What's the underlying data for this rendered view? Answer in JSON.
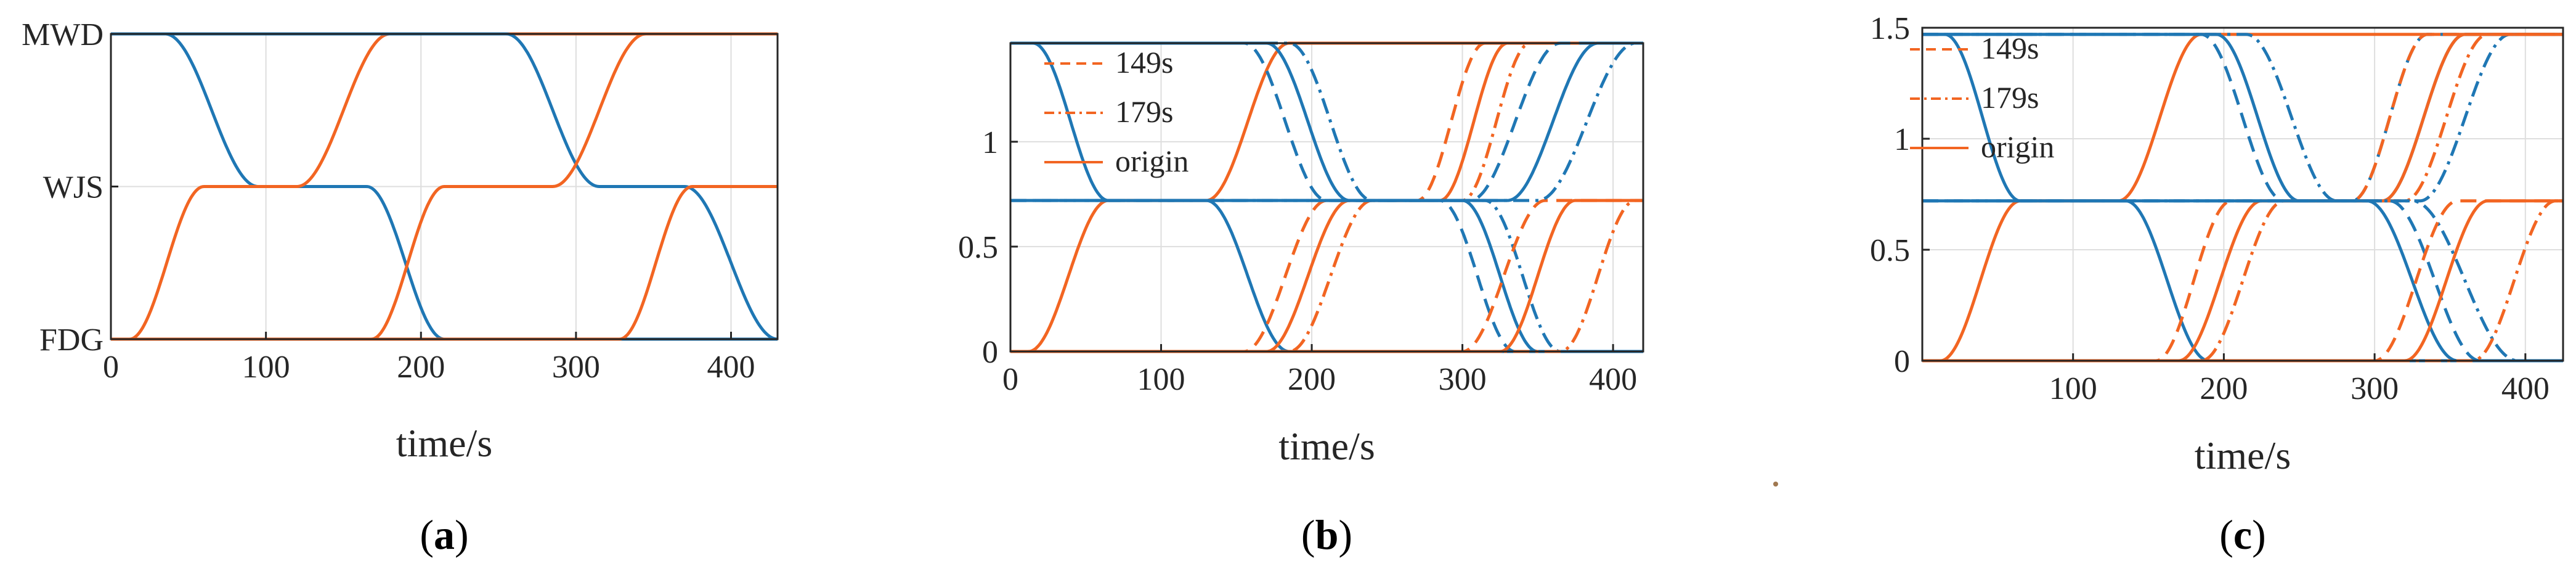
{
  "colors": {
    "blue": "#1f77b4",
    "orange": "#f26522",
    "axis": "#262626",
    "grid": "#dedede"
  },
  "chart_data": [
    {
      "panel": "a",
      "panel_label_prefix": "(",
      "panel_label_letter": "a",
      "panel_label_suffix": ")",
      "type": "line",
      "xlabel": "time/s",
      "xlim": [
        0,
        430
      ],
      "ylim": [
        0,
        2
      ],
      "xticks": [
        0,
        100,
        200,
        300,
        400
      ],
      "yticks": [
        0,
        1,
        2
      ],
      "ytick_labels": [
        "FDG",
        "WJS",
        "MWD"
      ],
      "legend": [],
      "series": [
        {
          "name": "blue",
          "color": "blue",
          "dash": "solid",
          "ramps": [
            [
              0,
              33,
              2
            ],
            [
              35,
              95,
              1
            ],
            [
              165,
              215,
              0
            ]
          ]
        },
        {
          "name": "orange",
          "color": "orange",
          "dash": "solid",
          "ramps": [
            [
              0,
              10,
              0
            ],
            [
              12,
              60,
              1
            ],
            [
              120,
              180,
              2
            ]
          ]
        },
        {
          "name": "blue-2",
          "color": "blue",
          "dash": "solid",
          "ramps": [
            [
              0,
              250,
              2
            ],
            [
              255,
              315,
              1
            ],
            [
              370,
              430,
              0
            ]
          ]
        },
        {
          "name": "orange-2",
          "color": "orange",
          "dash": "solid",
          "ramps": [
            [
              0,
              165,
              0
            ],
            [
              168,
              215,
              1
            ],
            [
              285,
              345,
              2
            ]
          ]
        },
        {
          "name": "orange-3",
          "color": "orange",
          "dash": "solid",
          "ramps": [
            [
              0,
              325,
              0
            ],
            [
              328,
              375,
              1
            ]
          ]
        }
      ]
    },
    {
      "panel": "b",
      "panel_label_prefix": "(",
      "panel_label_letter": "b",
      "panel_label_suffix": ")",
      "type": "line",
      "xlabel": "time/s",
      "xlim": [
        0,
        420
      ],
      "ylim": [
        0,
        1.47
      ],
      "xticks": [
        0,
        100,
        200,
        300,
        400
      ],
      "yticks": [
        0,
        0.5,
        1
      ],
      "ytick_labels": [
        "0",
        "0.5",
        "1"
      ],
      "legend": [
        {
          "label": "149s",
          "color": "orange",
          "dash": "dash"
        },
        {
          "label": "179s",
          "color": "orange",
          "dash": "dashdot"
        },
        {
          "label": "origin",
          "color": "orange",
          "dash": "solid"
        }
      ],
      "series": [
        {
          "name": "blue-1",
          "color": "blue",
          "dash": "solid",
          "ramps": [
            [
              0,
              15,
              1.47
            ],
            [
              15,
              65,
              0.72
            ],
            [
              130,
              185,
              0
            ]
          ]
        },
        {
          "name": "orange-1",
          "color": "orange",
          "dash": "solid",
          "ramps": [
            [
              0,
              10,
              0
            ],
            [
              12,
              65,
              0.72
            ],
            [
              130,
              185,
              1.47
            ]
          ]
        },
        {
          "name": "orange-2",
          "color": "orange",
          "dash": "solid",
          "ramps": [
            [
              0,
              170,
              0
            ],
            [
              170,
              225,
              0.72
            ],
            [
              285,
              330,
              1.47
            ]
          ]
        },
        {
          "name": "orange-2d",
          "color": "orange",
          "dash": "dash",
          "ramps": [
            [
              0,
              155,
              0
            ],
            [
              155,
              210,
              0.72
            ],
            [
              270,
              315,
              1.47
            ]
          ]
        },
        {
          "name": "orange-2dd",
          "color": "orange",
          "dash": "dashdot",
          "ramps": [
            [
              0,
              185,
              0
            ],
            [
              185,
              240,
              0.72
            ],
            [
              300,
              345,
              1.47
            ]
          ]
        },
        {
          "name": "blue-2",
          "color": "blue",
          "dash": "solid",
          "ramps": [
            [
              0,
              170,
              1.47
            ],
            [
              170,
              225,
              0.72
            ],
            [
              300,
              350,
              0
            ]
          ]
        },
        {
          "name": "blue-2d",
          "color": "blue",
          "dash": "dash",
          "ramps": [
            [
              0,
              155,
              1.47
            ],
            [
              155,
              210,
              0.72
            ],
            [
              285,
              335,
              0
            ]
          ]
        },
        {
          "name": "blue-2dd",
          "color": "blue",
          "dash": "dashdot",
          "ramps": [
            [
              0,
              185,
              1.47
            ],
            [
              185,
              240,
              0.72
            ],
            [
              315,
              365,
              0
            ]
          ]
        },
        {
          "name": "orange-3",
          "color": "orange",
          "dash": "solid",
          "ramps": [
            [
              0,
              325,
              0
            ],
            [
              325,
              375,
              0.72
            ]
          ]
        },
        {
          "name": "orange-3d",
          "color": "orange",
          "dash": "dash",
          "ramps": [
            [
              0,
              300,
              0
            ],
            [
              300,
              355,
              0.72
            ]
          ]
        },
        {
          "name": "orange-3dd",
          "color": "orange",
          "dash": "dashdot",
          "ramps": [
            [
              0,
              365,
              0
            ],
            [
              365,
              415,
              0.72
            ]
          ]
        },
        {
          "name": "blue-3",
          "color": "blue",
          "dash": "solid",
          "ramps": [
            [
              0,
              330,
              0.72
            ],
            [
              330,
              390,
              1.47
            ]
          ]
        },
        {
          "name": "blue-3d",
          "color": "blue",
          "dash": "dash",
          "ramps": [
            [
              0,
              305,
              0.72
            ],
            [
              305,
              365,
              1.47
            ]
          ]
        },
        {
          "name": "blue-3dd",
          "color": "blue",
          "dash": "dashdot",
          "ramps": [
            [
              0,
              350,
              0.72
            ],
            [
              350,
              415,
              1.47
            ]
          ]
        }
      ]
    },
    {
      "panel": "c",
      "panel_label_prefix": "(",
      "panel_label_letter": "c",
      "panel_label_suffix": ")",
      "type": "line",
      "xlabel": "time/s",
      "xlim": [
        0,
        425
      ],
      "ylim": [
        0,
        1.5
      ],
      "xticks": [
        100,
        200,
        300,
        400
      ],
      "yticks": [
        0,
        0.5,
        1,
        1.5
      ],
      "ytick_labels": [
        "0",
        "0.5",
        "1",
        "1.5"
      ],
      "legend": [
        {
          "label": "149s",
          "color": "orange",
          "dash": "dash"
        },
        {
          "label": "179s",
          "color": "orange",
          "dash": "dashdot"
        },
        {
          "label": "origin",
          "color": "orange",
          "dash": "solid"
        }
      ],
      "series": [
        {
          "name": "blue-1",
          "color": "blue",
          "dash": "solid",
          "ramps": [
            [
              0,
              15,
              1.47
            ],
            [
              15,
              65,
              0.72
            ],
            [
              135,
              190,
              0
            ]
          ]
        },
        {
          "name": "orange-1",
          "color": "orange",
          "dash": "solid",
          "ramps": [
            [
              0,
              10,
              0
            ],
            [
              12,
              65,
              0.72
            ],
            [
              130,
              185,
              1.47
            ]
          ]
        },
        {
          "name": "blue-2",
          "color": "blue",
          "dash": "solid",
          "ramps": [
            [
              0,
              195,
              1.47
            ],
            [
              195,
              250,
              0.72
            ],
            [
              305,
              360,
              1.47
            ]
          ]
        },
        {
          "name": "blue-2d",
          "color": "blue",
          "dash": "dash",
          "ramps": [
            [
              0,
              185,
              1.47
            ],
            [
              185,
              240,
              0.72
            ],
            [
              285,
              335,
              1.47
            ]
          ]
        },
        {
          "name": "blue-2dd",
          "color": "blue",
          "dash": "dashdot",
          "ramps": [
            [
              0,
              215,
              1.47
            ],
            [
              215,
              275,
              0.72
            ],
            [
              330,
              390,
              1.47
            ]
          ]
        },
        {
          "name": "orange-2",
          "color": "orange",
          "dash": "solid",
          "ramps": [
            [
              0,
              170,
              0
            ],
            [
              170,
              225,
              0.72
            ],
            [
              305,
              360,
              1.47
            ]
          ]
        },
        {
          "name": "orange-2d",
          "color": "orange",
          "dash": "dash",
          "ramps": [
            [
              0,
              155,
              0
            ],
            [
              155,
              205,
              0.72
            ],
            [
              285,
              335,
              1.47
            ]
          ]
        },
        {
          "name": "orange-2dd",
          "color": "orange",
          "dash": "dashdot",
          "ramps": [
            [
              0,
              185,
              0
            ],
            [
              185,
              240,
              0.72
            ],
            [
              320,
              375,
              1.47
            ]
          ]
        },
        {
          "name": "blue-3",
          "color": "blue",
          "dash": "solid",
          "ramps": [
            [
              0,
              295,
              0.72
            ],
            [
              295,
              355,
              0
            ]
          ]
        },
        {
          "name": "blue-3d",
          "color": "blue",
          "dash": "dash",
          "ramps": [
            [
              0,
              310,
              0.72
            ],
            [
              310,
              370,
              0
            ]
          ]
        },
        {
          "name": "blue-3dd",
          "color": "blue",
          "dash": "dashdot",
          "ramps": [
            [
              0,
              325,
              0.72
            ],
            [
              325,
              395,
              0
            ]
          ]
        },
        {
          "name": "orange-3",
          "color": "orange",
          "dash": "solid",
          "ramps": [
            [
              0,
              320,
              0
            ],
            [
              320,
              375,
              0.72
            ]
          ]
        },
        {
          "name": "orange-3d",
          "color": "orange",
          "dash": "dash",
          "ramps": [
            [
              0,
              300,
              0
            ],
            [
              300,
              355,
              0.72
            ]
          ]
        },
        {
          "name": "orange-3dd",
          "color": "orange",
          "dash": "dashdot",
          "ramps": [
            [
              0,
              365,
              0
            ],
            [
              365,
              420,
              0.72
            ]
          ]
        }
      ]
    }
  ]
}
